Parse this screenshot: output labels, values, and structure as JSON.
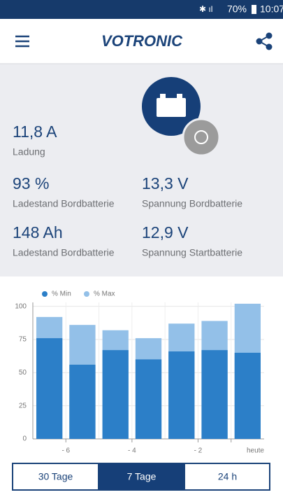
{
  "status_bar": {
    "battery": "70%",
    "time": "10:07"
  },
  "header": {
    "logo": "VOTRONIC"
  },
  "stats": [
    {
      "value": "11,8 A",
      "label": "Ladung"
    },
    {
      "value": "93 %",
      "label": "Ladestand Bordbatterie"
    },
    {
      "value": "13,3 V",
      "label": "Spannung Bordbatterie"
    },
    {
      "value": "148 Ah",
      "label": "Ladestand Bordbatterie"
    },
    {
      "value": "12,9 V",
      "label": "Spannung Startbatterie"
    }
  ],
  "chart_data": {
    "type": "bar",
    "categories": [
      null,
      "- 6",
      null,
      "- 4",
      null,
      "- 2",
      "heute"
    ],
    "series": [
      {
        "name": "% Max",
        "color": "#93c0e8",
        "values": [
          92,
          86,
          82,
          76,
          87,
          89,
          102
        ]
      },
      {
        "name": "% Min",
        "color": "#2c7fc8",
        "values": [
          76,
          56,
          67,
          60,
          66,
          67,
          65
        ]
      }
    ],
    "ylim": [
      0,
      103
    ],
    "yticks": [
      0,
      25,
      50,
      75,
      100
    ],
    "grid": true
  },
  "tabs": [
    "30 Tage",
    "7 Tage",
    "24 h"
  ]
}
